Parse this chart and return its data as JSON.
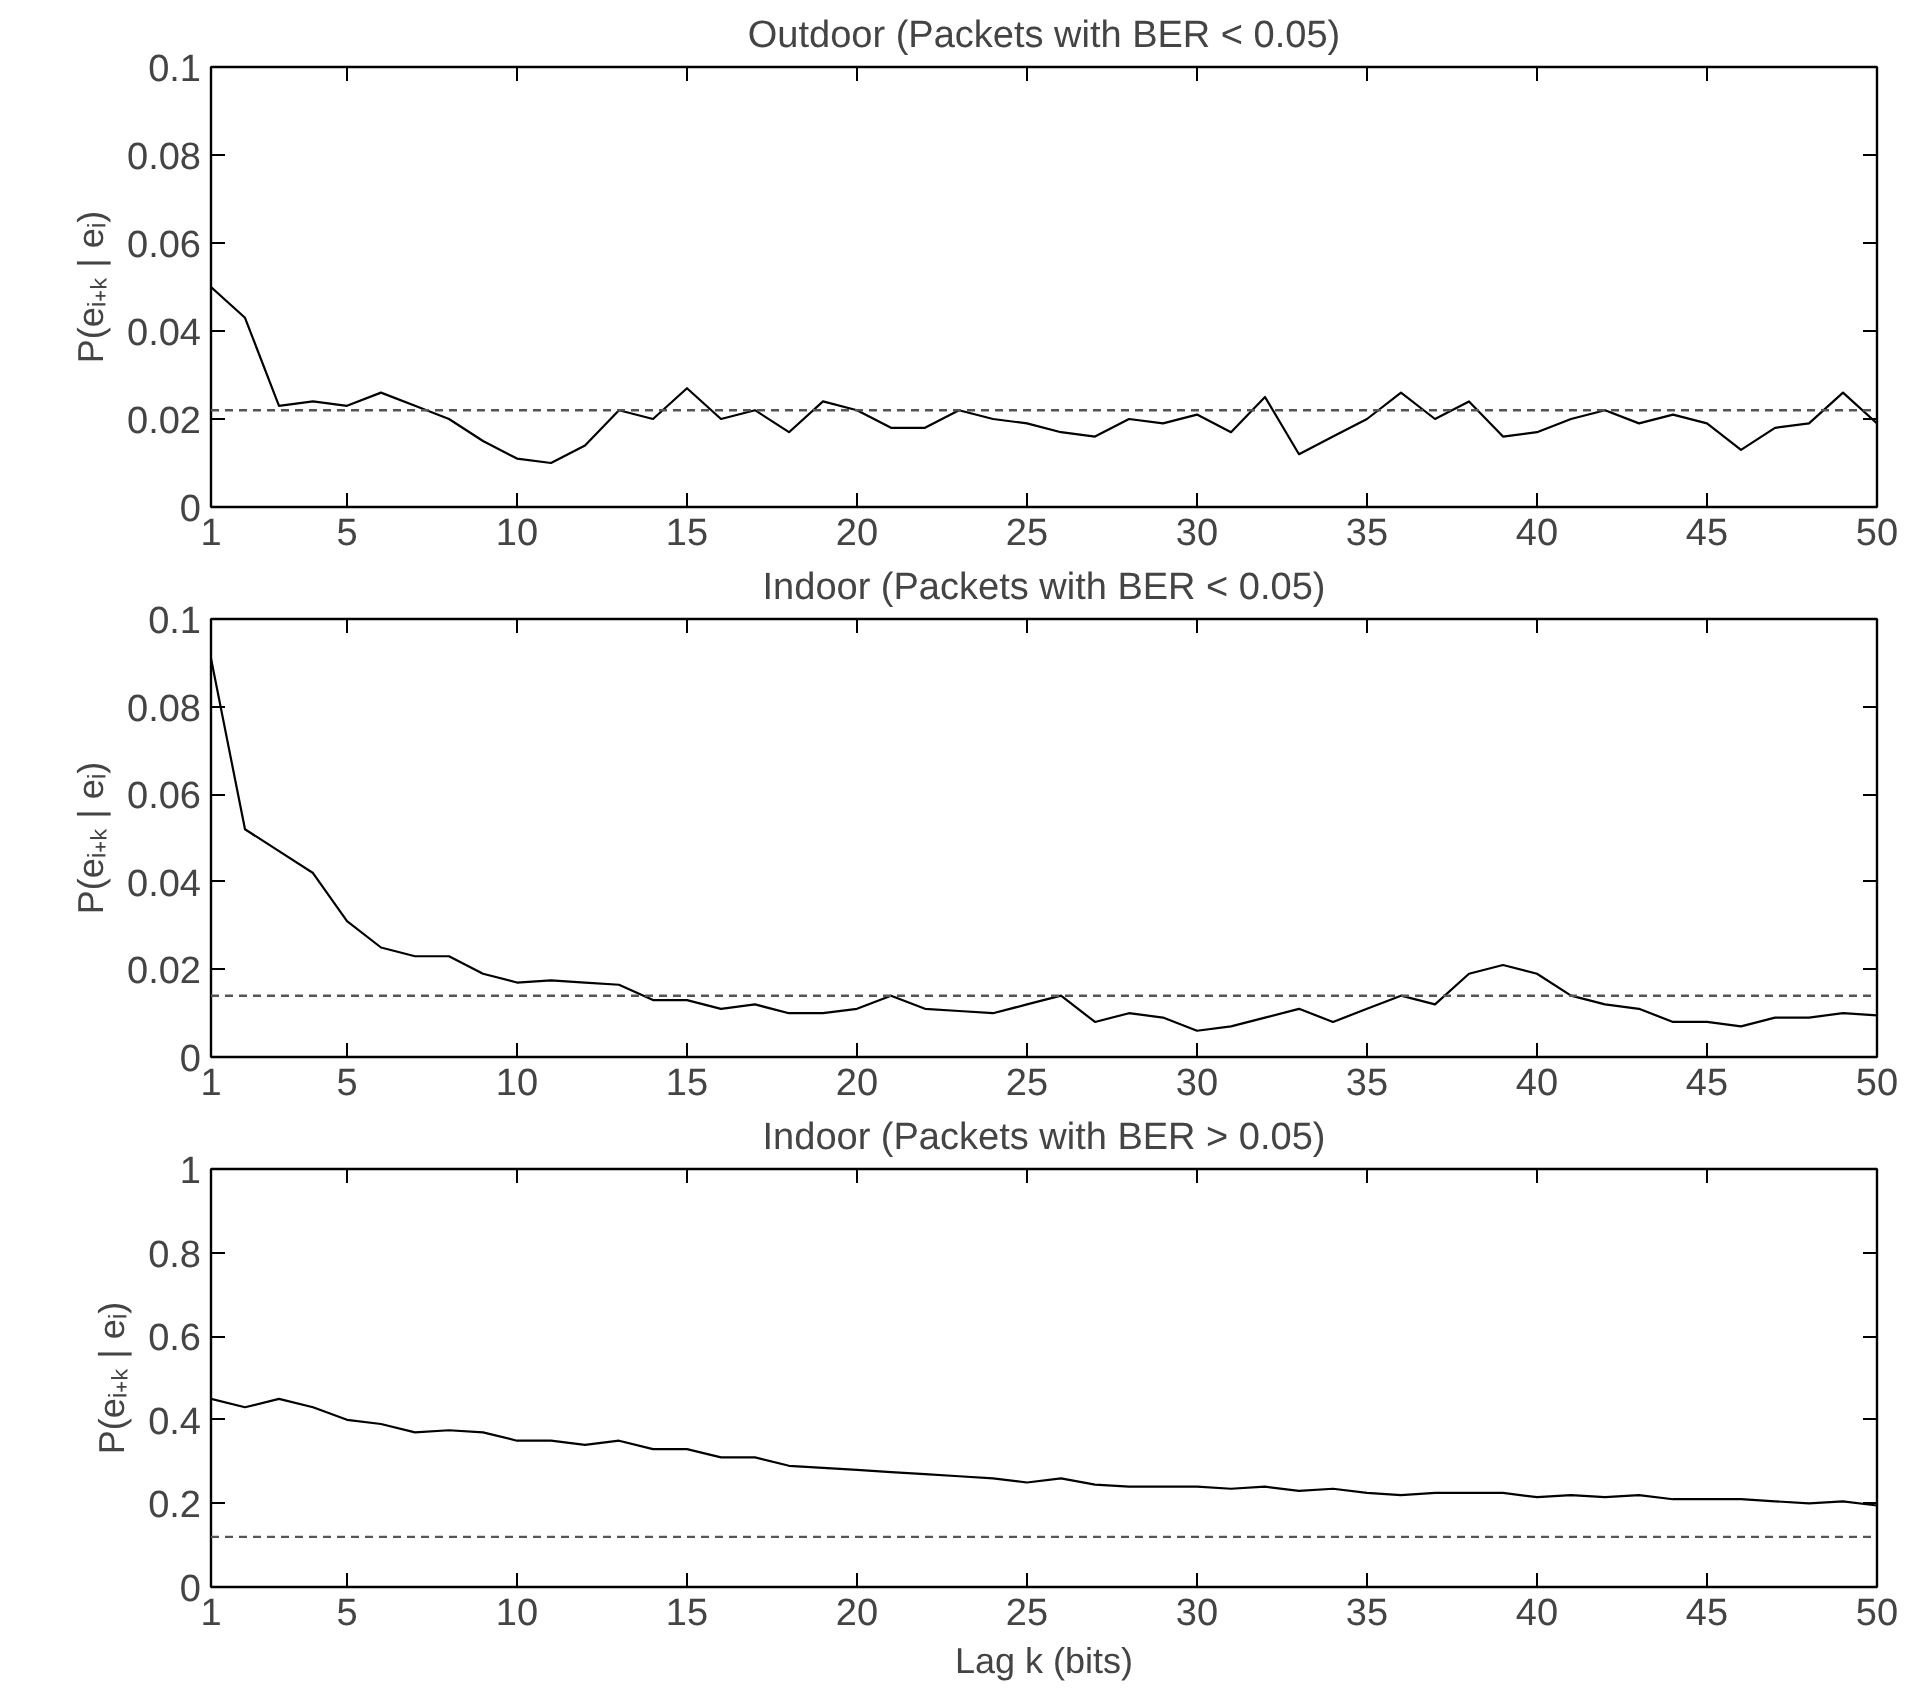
{
  "chart_data": [
    {
      "type": "line",
      "title": "Outdoor (Packets with BER < 0.05)",
      "ylabel": "P(eᵢ₊ₖ | eᵢ)",
      "x": [
        1,
        2,
        3,
        4,
        5,
        6,
        7,
        8,
        9,
        10,
        11,
        12,
        13,
        14,
        15,
        16,
        17,
        18,
        19,
        20,
        21,
        22,
        23,
        24,
        25,
        26,
        27,
        28,
        29,
        30,
        31,
        32,
        33,
        34,
        35,
        36,
        37,
        38,
        39,
        40,
        41,
        42,
        43,
        44,
        45,
        46,
        47,
        48,
        49,
        50
      ],
      "series": [
        {
          "color": "#000000",
          "values": [
            0.05,
            0.043,
            0.023,
            0.024,
            0.023,
            0.026,
            0.023,
            0.02,
            0.015,
            0.011,
            0.01,
            0.014,
            0.022,
            0.02,
            0.027,
            0.02,
            0.022,
            0.017,
            0.024,
            0.022,
            0.018,
            0.018,
            0.022,
            0.02,
            0.019,
            0.017,
            0.016,
            0.02,
            0.019,
            0.021,
            0.017,
            0.025,
            0.012,
            0.016,
            0.02,
            0.026,
            0.02,
            0.024,
            0.016,
            0.017,
            0.02,
            0.022,
            0.019,
            0.021,
            0.019,
            0.013,
            0.018,
            0.019,
            0.026,
            0.019
          ]
        }
      ],
      "xlim": [
        1,
        50
      ],
      "xticks": [
        1,
        5,
        10,
        15,
        20,
        25,
        30,
        35,
        40,
        45,
        50
      ],
      "ylim": [
        0,
        0.1
      ],
      "yticks": [
        0,
        0.02,
        0.04,
        0.06,
        0.08,
        0.1
      ],
      "ref_lines": [
        {
          "axis": "y",
          "value": 0.022,
          "label": null,
          "color": "#555555",
          "line_style": "dashed"
        }
      ],
      "grid": false,
      "marker": "none",
      "line_style": "solid"
    },
    {
      "type": "line",
      "title": "Indoor (Packets with BER < 0.05)",
      "ylabel": "P(eᵢ₊ₖ | eᵢ)",
      "x": [
        1,
        2,
        3,
        4,
        5,
        6,
        7,
        8,
        9,
        10,
        11,
        12,
        13,
        14,
        15,
        16,
        17,
        18,
        19,
        20,
        21,
        22,
        23,
        24,
        25,
        26,
        27,
        28,
        29,
        30,
        31,
        32,
        33,
        34,
        35,
        36,
        37,
        38,
        39,
        40,
        41,
        42,
        43,
        44,
        45,
        46,
        47,
        48,
        49,
        50
      ],
      "series": [
        {
          "color": "#000000",
          "values": [
            0.091,
            0.052,
            0.047,
            0.042,
            0.031,
            0.025,
            0.023,
            0.023,
            0.019,
            0.017,
            0.0175,
            0.017,
            0.0165,
            0.013,
            0.013,
            0.011,
            0.012,
            0.01,
            0.01,
            0.011,
            0.014,
            0.011,
            0.0105,
            0.01,
            0.012,
            0.014,
            0.008,
            0.01,
            0.009,
            0.006,
            0.007,
            0.009,
            0.011,
            0.008,
            0.011,
            0.014,
            0.012,
            0.019,
            0.021,
            0.019,
            0.014,
            0.012,
            0.011,
            0.008,
            0.008,
            0.007,
            0.009,
            0.009,
            0.01,
            0.0095
          ]
        }
      ],
      "xlim": [
        1,
        50
      ],
      "xticks": [
        1,
        5,
        10,
        15,
        20,
        25,
        30,
        35,
        40,
        45,
        50
      ],
      "ylim": [
        0,
        0.1
      ],
      "yticks": [
        0,
        0.02,
        0.04,
        0.06,
        0.08,
        0.1
      ],
      "ref_lines": [
        {
          "axis": "y",
          "value": 0.014,
          "label": null,
          "color": "#555555",
          "line_style": "dashed"
        }
      ],
      "grid": false,
      "marker": "none",
      "line_style": "solid"
    },
    {
      "type": "line",
      "title": "Indoor (Packets with BER > 0.05)",
      "ylabel": "P(eᵢ₊ₖ | eᵢ)",
      "xlabel": "Lag k (bits)",
      "x": [
        1,
        2,
        3,
        4,
        5,
        6,
        7,
        8,
        9,
        10,
        11,
        12,
        13,
        14,
        15,
        16,
        17,
        18,
        19,
        20,
        21,
        22,
        23,
        24,
        25,
        26,
        27,
        28,
        29,
        30,
        31,
        32,
        33,
        34,
        35,
        36,
        37,
        38,
        39,
        40,
        41,
        42,
        43,
        44,
        45,
        46,
        47,
        48,
        49,
        50
      ],
      "series": [
        {
          "color": "#000000",
          "values": [
            0.45,
            0.43,
            0.45,
            0.43,
            0.4,
            0.39,
            0.37,
            0.375,
            0.37,
            0.35,
            0.35,
            0.34,
            0.35,
            0.33,
            0.33,
            0.31,
            0.31,
            0.29,
            0.285,
            0.28,
            0.275,
            0.27,
            0.265,
            0.26,
            0.25,
            0.26,
            0.245,
            0.24,
            0.24,
            0.24,
            0.235,
            0.24,
            0.23,
            0.235,
            0.225,
            0.22,
            0.225,
            0.225,
            0.225,
            0.215,
            0.22,
            0.215,
            0.22,
            0.21,
            0.21,
            0.21,
            0.205,
            0.2,
            0.205,
            0.195
          ]
        }
      ],
      "xlim": [
        1,
        50
      ],
      "xticks": [
        1,
        5,
        10,
        15,
        20,
        25,
        30,
        35,
        40,
        45,
        50
      ],
      "ylim": [
        0,
        1
      ],
      "yticks": [
        0,
        0.2,
        0.4,
        0.6,
        0.8,
        1
      ],
      "ref_lines": [
        {
          "axis": "y",
          "value": 0.12,
          "label": null,
          "color": "#555555",
          "line_style": "dashed"
        }
      ],
      "grid": false,
      "marker": "none",
      "line_style": "solid"
    }
  ]
}
